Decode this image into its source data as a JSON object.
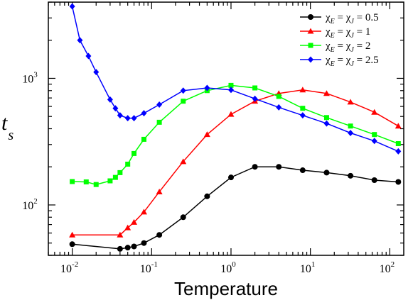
{
  "chart_data": {
    "type": "line",
    "xlabel": "Temperature",
    "ylabel": {
      "main": "t",
      "sub": "s"
    },
    "xscale": "log",
    "yscale": "log",
    "xlim": [
      0.005,
      150
    ],
    "ylim": [
      40,
      4000
    ],
    "xticks": [
      {
        "value": 0.01,
        "base": "10",
        "exp": "-2"
      },
      {
        "value": 0.1,
        "base": "10",
        "exp": "-1"
      },
      {
        "value": 1,
        "base": "10",
        "exp": "0"
      },
      {
        "value": 10,
        "base": "10",
        "exp": "1"
      },
      {
        "value": 100,
        "base": "10",
        "exp": "2"
      }
    ],
    "yticks": [
      {
        "value": 100,
        "base": "10",
        "exp": "2"
      },
      {
        "value": 1000,
        "base": "10",
        "exp": "3"
      }
    ],
    "grid": false,
    "legend_position": "top-right",
    "series": [
      {
        "name": "χE = χJ = 0.5",
        "label": {
          "chi": "χ",
          "e": "E",
          "eq1": " = ",
          "j": "J",
          "value": " = 0.5"
        },
        "color": "#000000",
        "marker": "circle",
        "x": [
          0.01,
          0.04,
          0.05,
          0.06,
          0.08,
          0.125,
          0.25,
          0.5,
          1,
          2,
          4,
          8,
          16,
          32,
          64,
          128
        ],
        "y": [
          49,
          45,
          46,
          47,
          50,
          58,
          80,
          117,
          165,
          200,
          200,
          188,
          180,
          170,
          157,
          152
        ]
      },
      {
        "name": "χE = χJ = 1",
        "label": {
          "chi": "χ",
          "e": "E",
          "eq1": " = ",
          "j": "J",
          "value": " = 1"
        },
        "color": "#ff0000",
        "marker": "triangle",
        "x": [
          0.01,
          0.04,
          0.05,
          0.06,
          0.08,
          0.125,
          0.25,
          0.5,
          1,
          2,
          4,
          8,
          16,
          32,
          64,
          128
        ],
        "y": [
          58,
          58,
          66,
          73,
          88,
          127,
          220,
          360,
          520,
          660,
          760,
          810,
          760,
          650,
          540,
          420
        ]
      },
      {
        "name": "χE = χJ = 2",
        "label": {
          "chi": "χ",
          "e": "E",
          "eq1": " = ",
          "j": "J",
          "value": " = 2"
        },
        "color": "#00ff00",
        "marker": "square",
        "x": [
          0.01,
          0.015,
          0.02,
          0.03,
          0.035,
          0.04,
          0.05,
          0.06,
          0.08,
          0.125,
          0.25,
          0.5,
          1,
          2,
          4,
          8,
          16,
          32,
          64,
          128
        ],
        "y": [
          153,
          152,
          145,
          155,
          165,
          180,
          210,
          255,
          330,
          450,
          660,
          800,
          880,
          840,
          720,
          580,
          490,
          420,
          360,
          305
        ]
      },
      {
        "name": "χE = χJ = 2.5",
        "label": {
          "chi": "χ",
          "e": "E",
          "eq1": " = ",
          "j": "J",
          "value": " = 2.5"
        },
        "color": "#0000ff",
        "marker": "diamond",
        "x": [
          0.01,
          0.0125,
          0.016,
          0.02,
          0.03,
          0.035,
          0.04,
          0.05,
          0.06,
          0.08,
          0.125,
          0.25,
          0.5,
          1,
          2,
          4,
          8,
          16,
          32,
          64,
          128
        ],
        "y": [
          3700,
          2000,
          1500,
          1120,
          680,
          580,
          510,
          485,
          485,
          530,
          620,
          800,
          840,
          810,
          690,
          590,
          510,
          440,
          370,
          320,
          265
        ]
      }
    ]
  }
}
